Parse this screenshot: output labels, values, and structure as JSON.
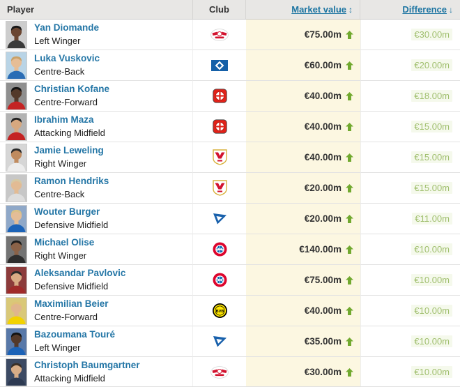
{
  "table": {
    "columns": {
      "player": "Player",
      "club": "Club",
      "market_value": "Market value",
      "difference": "Difference"
    },
    "sort": {
      "market_value_icon": "↕",
      "difference_icon": "↓"
    },
    "rows": [
      {
        "name": "Yan Diomande",
        "position": "Left Winger",
        "club": "RB Leipzig",
        "club_id": "rb-leipzig",
        "market_value": "€75.00m",
        "trend": "up",
        "difference": "€30.00m",
        "photo": {
          "bg": "#cdcdcd",
          "skin": "#6b4632",
          "shirt": "#3a3a3a",
          "hair": "#181818"
        }
      },
      {
        "name": "Luka Vuskovic",
        "position": "Centre-Back",
        "club": "Hamburger SV",
        "club_id": "hamburg",
        "market_value": "€60.00m",
        "trend": "up",
        "difference": "€20.00m",
        "photo": {
          "bg": "#b9d4e6",
          "skin": "#e6bd96",
          "shirt": "#2a6db5",
          "hair": "#c9a168"
        }
      },
      {
        "name": "Christian Kofane",
        "position": "Centre-Forward",
        "club": "Bayer 04 Leverkusen",
        "club_id": "leverkusen",
        "market_value": "€40.00m",
        "trend": "up",
        "difference": "€18.00m",
        "photo": {
          "bg": "#8f8f8f",
          "skin": "#53392a",
          "shirt": "#c42323",
          "hair": "#121212"
        }
      },
      {
        "name": "Ibrahim Maza",
        "position": "Attacking Midfield",
        "club": "Bayer 04 Leverkusen",
        "club_id": "leverkusen",
        "market_value": "€40.00m",
        "trend": "up",
        "difference": "€15.00m",
        "photo": {
          "bg": "#b3b3b3",
          "skin": "#d7a87f",
          "shirt": "#c42323",
          "hair": "#222222"
        }
      },
      {
        "name": "Jamie Leweling",
        "position": "Right Winger",
        "club": "VfB Stuttgart",
        "club_id": "stuttgart",
        "market_value": "€40.00m",
        "trend": "up",
        "difference": "€15.00m",
        "photo": {
          "bg": "#d6d6d6",
          "skin": "#c08b5f",
          "shirt": "#ececec",
          "hair": "#2a2a2a"
        }
      },
      {
        "name": "Ramon Hendriks",
        "position": "Centre-Back",
        "club": "VfB Stuttgart",
        "club_id": "stuttgart",
        "market_value": "€20.00m",
        "trend": "up",
        "difference": "€15.00m",
        "photo": {
          "bg": "#c7c7c7",
          "skin": "#e2bb94",
          "shirt": "#dddddd",
          "hair": "#d6c9a4"
        }
      },
      {
        "name": "Wouter Burger",
        "position": "Defensive Midfield",
        "club": "TSG 1899 Hoffenheim",
        "club_id": "hoffenheim",
        "market_value": "€20.00m",
        "trend": "up",
        "difference": "€11.00m",
        "photo": {
          "bg": "#8fa8c8",
          "skin": "#e3bd97",
          "shirt": "#1c63b7",
          "hair": "#d9c187"
        }
      },
      {
        "name": "Michael Olise",
        "position": "Right Winger",
        "club": "Bayern Munich",
        "club_id": "bayern",
        "market_value": "€140.00m",
        "trend": "up",
        "difference": "€10.00m",
        "photo": {
          "bg": "#737373",
          "skin": "#8a6248",
          "shirt": "#2e2e2e",
          "hair": "#1c1c1c"
        }
      },
      {
        "name": "Aleksandar Pavlovic",
        "position": "Defensive Midfield",
        "club": "Bayern Munich",
        "club_id": "bayern",
        "market_value": "€75.00m",
        "trend": "up",
        "difference": "€10.00m",
        "photo": {
          "bg": "#8c3b3b",
          "skin": "#d9ab85",
          "shirt": "#a02a2a",
          "hair": "#2a2a2a"
        }
      },
      {
        "name": "Maximilian Beier",
        "position": "Centre-Forward",
        "club": "Borussia Dortmund",
        "club_id": "dortmund",
        "market_value": "€40.00m",
        "trend": "up",
        "difference": "€10.00m",
        "photo": {
          "bg": "#d9c878",
          "skin": "#e0b58d",
          "shirt": "#f2d200",
          "hair": "#dfc178"
        }
      },
      {
        "name": "Bazoumana Touré",
        "position": "Left Winger",
        "club": "TSG 1899 Hoffenheim",
        "club_id": "hoffenheim",
        "market_value": "€35.00m",
        "trend": "up",
        "difference": "€10.00m",
        "photo": {
          "bg": "#5878a8",
          "skin": "#53392a",
          "shirt": "#1c63b7",
          "hair": "#121212"
        }
      },
      {
        "name": "Christoph Baumgartner",
        "position": "Attacking Midfield",
        "club": "RB Leipzig",
        "club_id": "rb-leipzig",
        "market_value": "€30.00m",
        "trend": "up",
        "difference": "€10.00m",
        "photo": {
          "bg": "#3c4a63",
          "skin": "#d8ad87",
          "shirt": "#2d3a52",
          "hair": "#3a2f26"
        }
      }
    ]
  },
  "colors": {
    "header_bg": "#e8e7e5",
    "link_blue": "#1d75a2",
    "player_name_blue": "#2476a6",
    "market_value_col_bg": "#fcf7e1",
    "value_up_green": "#71a92f",
    "difference_green": "#a0bf6e",
    "difference_highlight": "#f5f9ec"
  }
}
